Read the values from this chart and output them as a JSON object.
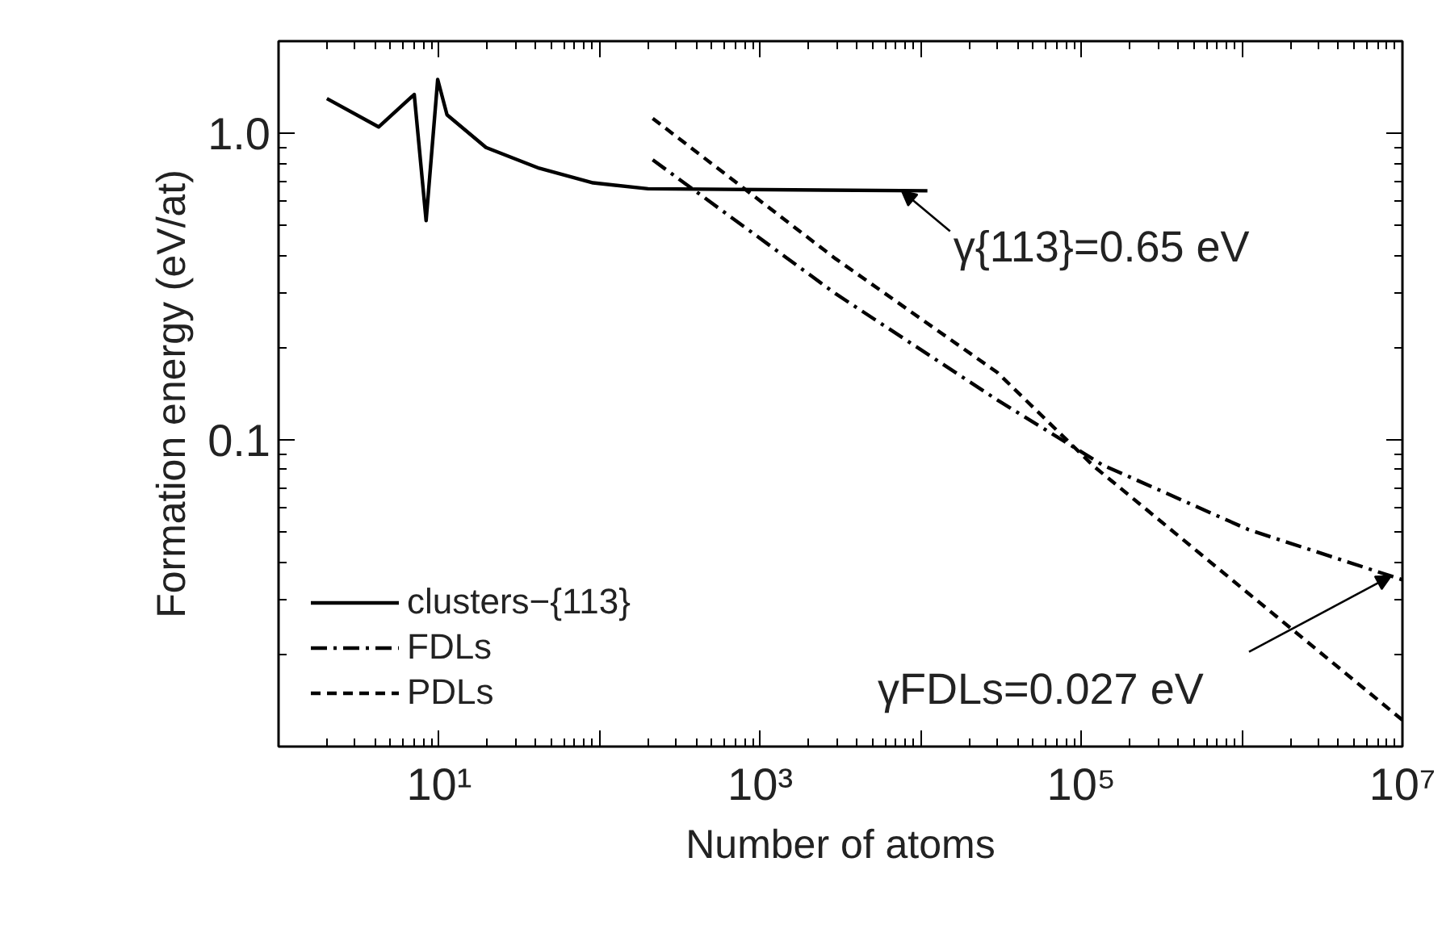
{
  "chart_data": {
    "type": "line",
    "xlabel": "Number of atoms",
    "ylabel": "Formation energy (eV/at)",
    "log": "xy",
    "xlim": [
      1,
      10000000
    ],
    "ylim": [
      0.01,
      2
    ],
    "xticks": [
      {
        "value": 1,
        "label": null
      },
      {
        "value": 10,
        "label": "10¹"
      },
      {
        "value": 100,
        "label": null
      },
      {
        "value": 1000,
        "label": "10³"
      },
      {
        "value": 10000,
        "label": null
      },
      {
        "value": 100000,
        "label": "10⁵"
      },
      {
        "value": 1000000,
        "label": null
      },
      {
        "value": 10000000,
        "label": "10⁷"
      }
    ],
    "yticks": [
      {
        "value": 0.01,
        "label": null
      },
      {
        "value": 0.1,
        "label": "0.1"
      },
      {
        "value": 1,
        "label": "1.0"
      }
    ],
    "series": [
      {
        "name": "clusters−{113}",
        "color": "#000000",
        "line_style": "solid",
        "x": [
          2,
          4.2,
          7,
          8.3,
          9.8,
          11.2,
          19.6,
          42,
          91,
          200,
          11000
        ],
        "values": [
          1.3,
          1.05,
          1.34,
          0.52,
          1.5,
          1.15,
          0.9,
          0.77,
          0.69,
          0.66,
          0.65
        ]
      },
      {
        "name": "FDLs",
        "color": "#000000",
        "line_style": "dashdot",
        "x": [
          214,
          290,
          2950,
          30000,
          135000,
          1100000,
          10000000
        ],
        "values": [
          0.82,
          0.73,
          0.3,
          0.135,
          0.083,
          0.051,
          0.035
        ]
      },
      {
        "name": "PDLs",
        "color": "#000000",
        "line_style": "dashed",
        "x": [
          214,
          2950,
          30000,
          120000,
          10000000
        ],
        "values": [
          1.12,
          0.39,
          0.166,
          0.082,
          0.0122
        ]
      }
    ],
    "annotations": [
      {
        "text": "γ{113}=0.65 eV",
        "x": 7600,
        "y": 0.65
      },
      {
        "text": "γFDLs=0.027 eV",
        "x": 8500000,
        "y": 0.036
      }
    ],
    "legend": "bottom left",
    "grid": false
  }
}
